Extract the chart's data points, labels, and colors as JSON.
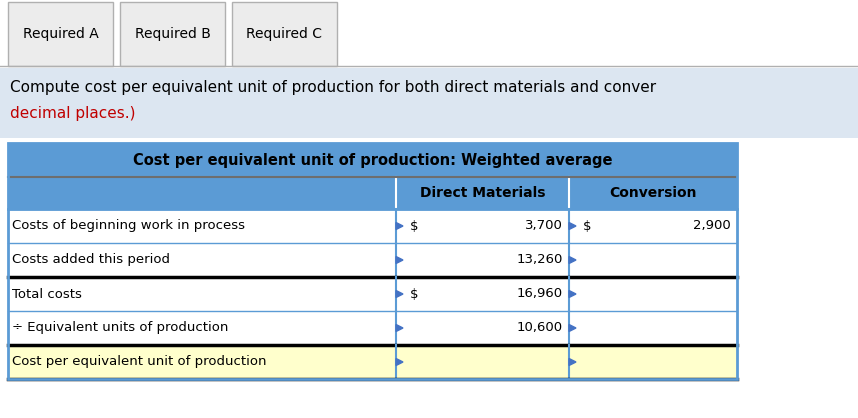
{
  "tab_labels": [
    "Required A",
    "Required B",
    "Required C"
  ],
  "instruction_line1": "Compute cost per equivalent unit of production for both direct materials and conver",
  "instruction_line2": "decimal places.)",
  "instruction_color": "#c00000",
  "table_title": "Cost per equivalent unit of production: Weighted average",
  "col_headers": [
    "",
    "Direct Materials",
    "Conversion"
  ],
  "rows": [
    {
      "label": "Costs of beginning work in process",
      "dm_prefix": "$",
      "dm_val": "3,700",
      "conv_prefix": "$",
      "conv_val": "2,900",
      "black_top": false
    },
    {
      "label": "Costs added this period",
      "dm_prefix": "",
      "dm_val": "13,260",
      "conv_prefix": "",
      "conv_val": "",
      "black_top": false
    },
    {
      "label": "Total costs",
      "dm_prefix": "$",
      "dm_val": "16,960",
      "conv_prefix": "",
      "conv_val": "",
      "black_top": true
    },
    {
      "label": "÷ Equivalent units of production",
      "dm_prefix": "",
      "dm_val": "10,600",
      "conv_prefix": "",
      "conv_val": "",
      "black_top": false
    },
    {
      "label": "Cost per equivalent unit of production",
      "dm_prefix": "",
      "dm_val": "",
      "conv_prefix": "",
      "conv_val": "",
      "black_top": true
    }
  ],
  "header_bg": "#5b9bd5",
  "header_fg": "#000000",
  "row_bg": "#ffffff",
  "last_row_bg": "#ffffcc",
  "tab_bg": "#ececec",
  "instruction_bg": "#dce6f1",
  "border_color": "#5b9bd5",
  "dark_border": "#4472c4",
  "black_border": "#000000",
  "triangle_color": "#4472c4",
  "fig_width": 8.58,
  "fig_height": 4.18,
  "dpi": 100
}
